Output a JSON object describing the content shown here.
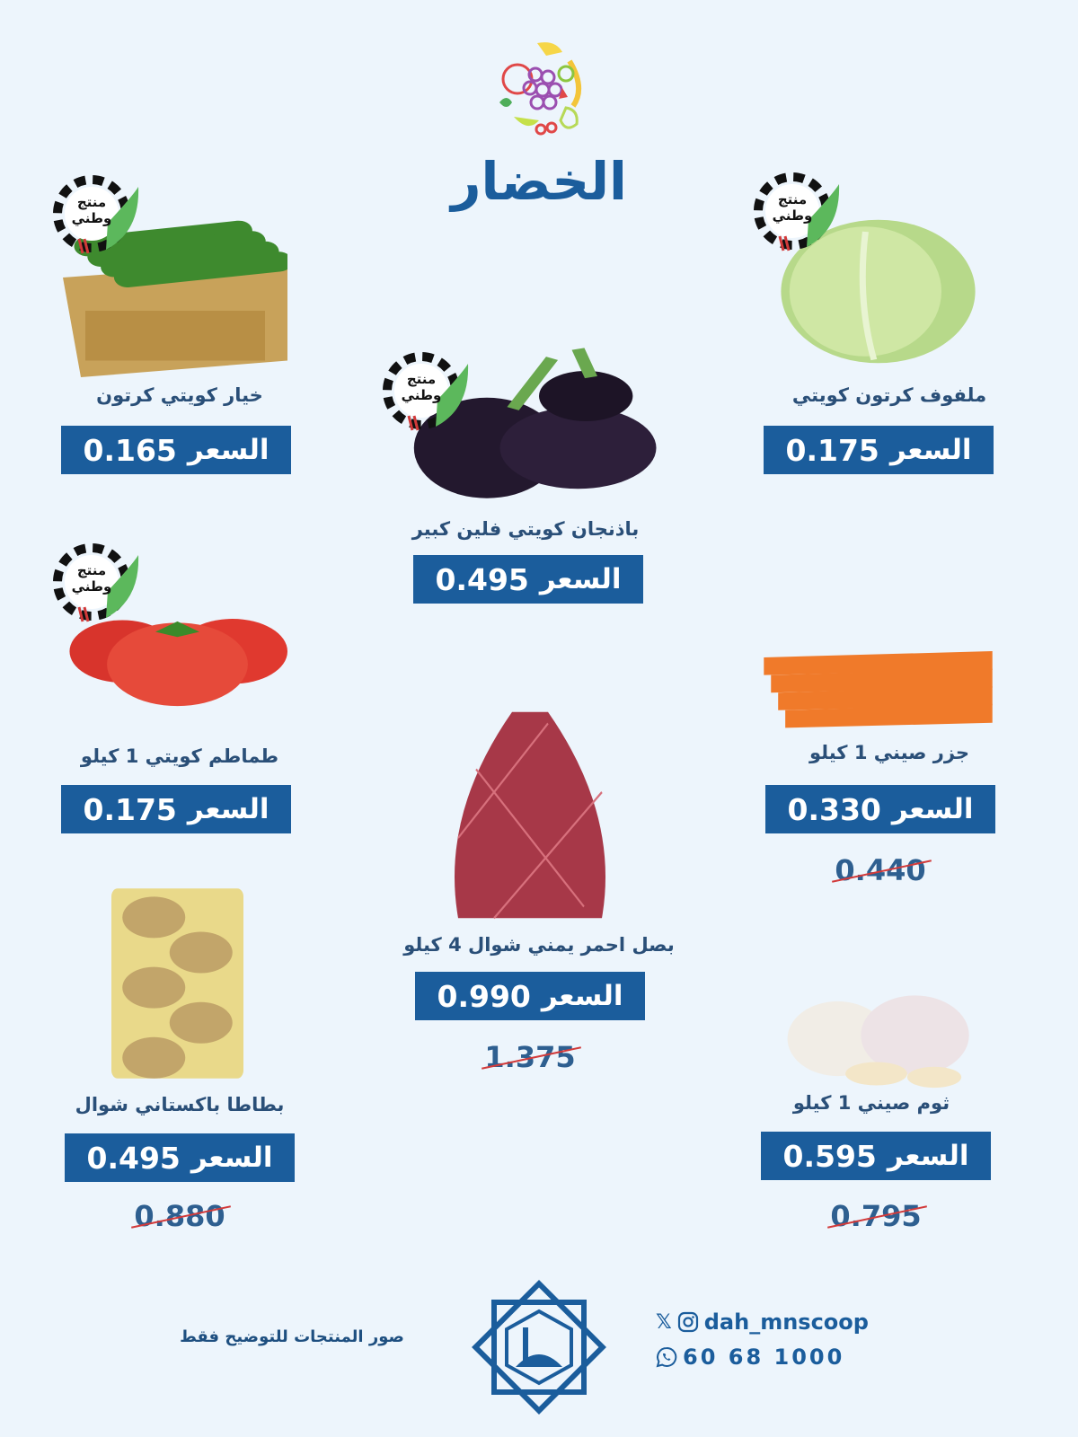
{
  "header": {
    "title": "الخضار",
    "logo_icon": "fruit-circle-logo"
  },
  "colors": {
    "background": "#edf5fc",
    "price_box": "#1b5d9c",
    "text": "#2a4f78",
    "strike": "#d23a3a"
  },
  "badge_text": "منتج وطني",
  "price_label": "السعر",
  "products": [
    {
      "name": "ملفوف كرتون كويتي",
      "price": "0.175",
      "old_price": null,
      "image": "cabbage",
      "badge": true
    },
    {
      "name": "خيار كويتي كرتون",
      "price": "0.165",
      "old_price": null,
      "image": "cucumber-box",
      "badge": true
    },
    {
      "name": "باذنجان كويتي فلين كبير",
      "price": "0.495",
      "old_price": null,
      "image": "eggplant",
      "badge": true
    },
    {
      "name": "طماطم كويتي 1 كيلو",
      "price": "0.175",
      "old_price": null,
      "image": "tomato",
      "badge": true
    },
    {
      "name": "جزر صيني 1 كيلو",
      "price": "0.330",
      "old_price": "0.440",
      "image": "carrot",
      "badge": false
    },
    {
      "name": "بصل احمر يمني شوال 4 كيلو",
      "price": "0.990",
      "old_price": "1.375",
      "image": "onion-sack",
      "badge": false
    },
    {
      "name": "بطاطا باكستاني شوال",
      "price": "0.495",
      "old_price": "0.880",
      "image": "potato-bag",
      "badge": false
    },
    {
      "name": "ثوم صيني 1 كيلو",
      "price": "0.595",
      "old_price": "0.795",
      "image": "garlic",
      "badge": false
    }
  ],
  "footer": {
    "note": "صور المنتجات للتوضيح فقط",
    "social_handle": "dah_mnscoop",
    "phone": "60 68 1000",
    "emblem_icon": "coop-emblem"
  }
}
